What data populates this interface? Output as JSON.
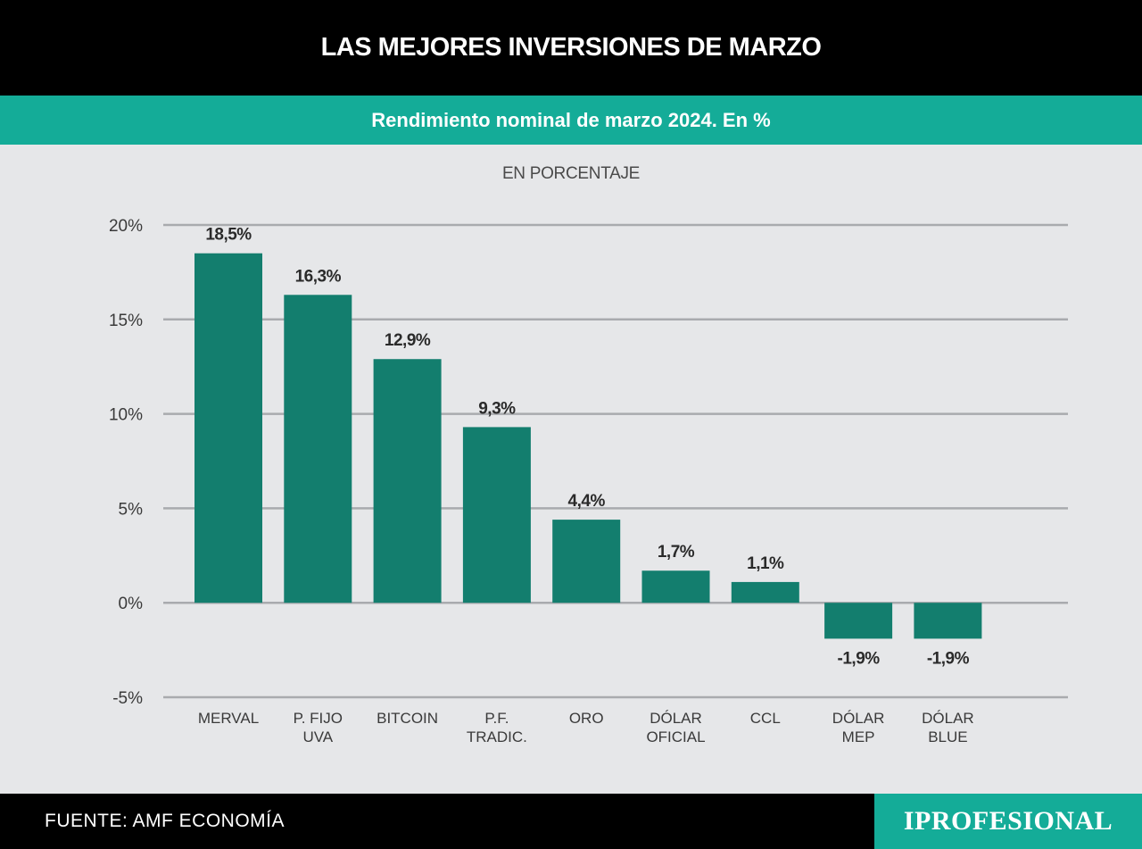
{
  "header": {
    "title": "LAS MEJORES INVERSIONES DE MARZO",
    "subtitle": "Rendimiento nominal de marzo 2024. En %"
  },
  "footer": {
    "source": "FUENTE: AMF ECONOMÍA",
    "brand": "IPROFESIONAL"
  },
  "colors": {
    "bar": "#137e6e",
    "header_bg": "#000000",
    "accent": "#14ac98",
    "background": "#e6e7e9",
    "grid": "#a9abae"
  },
  "chart_data": {
    "type": "bar",
    "unit_label": "EN PORCENTAJE",
    "categories": [
      [
        "MERVAL"
      ],
      [
        "P. FIJO",
        "UVA"
      ],
      [
        "BITCOIN"
      ],
      [
        "P.F.",
        "TRADIC."
      ],
      [
        "ORO"
      ],
      [
        "DÓLAR",
        "OFICIAL"
      ],
      [
        "CCL"
      ],
      [
        "DÓLAR",
        "MEP"
      ],
      [
        "DÓLAR",
        "BLUE"
      ]
    ],
    "values": [
      18.5,
      16.3,
      12.9,
      9.3,
      4.4,
      1.7,
      1.1,
      -1.9,
      -1.9
    ],
    "data_labels": [
      "18,5%",
      "16,3%",
      "12,9%",
      "9,3%",
      "4,4%",
      "1,7%",
      "1,1%",
      "-1,9%",
      "-1,9%"
    ],
    "yticks": [
      20,
      15,
      10,
      5,
      0,
      -5
    ],
    "ytick_labels": [
      "20%",
      "15%",
      "10%",
      "5%",
      "0%",
      "-5%"
    ],
    "ylim": [
      -5,
      20
    ],
    "grid": true
  }
}
